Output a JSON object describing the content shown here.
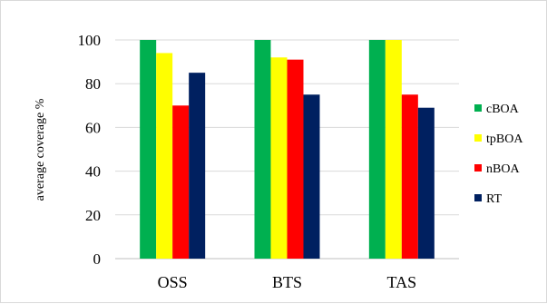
{
  "chart_data": {
    "type": "bar",
    "categories": [
      "OSS",
      "BTS",
      "TAS"
    ],
    "series": [
      {
        "name": "cBOA",
        "color": "#00b050",
        "values": [
          100,
          100,
          100
        ]
      },
      {
        "name": "tpBOA",
        "color": "#ffff00",
        "values": [
          94,
          92,
          100
        ]
      },
      {
        "name": "nBOA",
        "color": "#ff0000",
        "values": [
          70,
          91,
          75
        ]
      },
      {
        "name": "RT",
        "color": "#002060",
        "values": [
          85,
          75,
          69
        ]
      }
    ],
    "ylabel": "average coverage %",
    "ylim": [
      0,
      100
    ],
    "yticks": [
      "0",
      "20",
      "40",
      "60",
      "80",
      "100"
    ],
    "grid": true,
    "legend_position": "right"
  }
}
